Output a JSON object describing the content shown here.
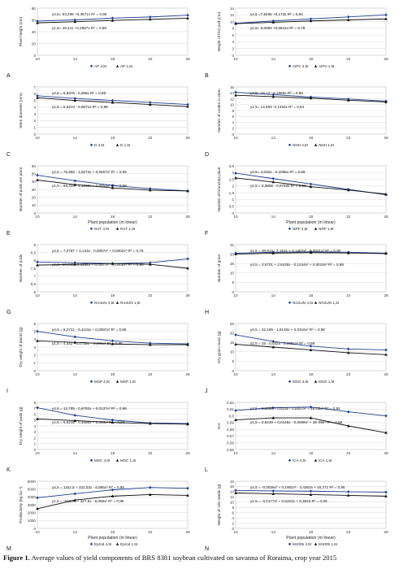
{
  "caption": {
    "label": "Figure 1.",
    "text": " Average values of yield components of BRS 8381 soybean cultivated on savanna of Roraima, crop year 2015"
  },
  "colors": {
    "series_high": "#1f3f8f",
    "series_low": "#0e0e0e",
    "grid": "#d9d9d9"
  },
  "chart_data": [
    {
      "panel": "A",
      "type": "line",
      "x": [
        10,
        14,
        18,
        22,
        26
      ],
      "xlim": [
        10,
        26
      ],
      "ylim": [
        0,
        80
      ],
      "yticks": [
        0,
        20,
        40,
        60,
        80
      ],
      "ylabel": "Plant height (cm)",
      "xlabel": "",
      "series": [
        {
          "name": "AP 4,5t",
          "values": [
            58,
            60,
            63,
            65,
            68
          ]
        },
        {
          "name": "AP 1,5t",
          "values": [
            55,
            57,
            59,
            61,
            63
          ]
        }
      ],
      "equations": [
        "y4,5= 53,296 +0,4671x R² = 0,86",
        "y1,5= 49,411 +0,4887x  R² = 0,89"
      ]
    },
    {
      "panel": "B",
      "type": "line",
      "x": [
        10,
        14,
        18,
        22,
        26
      ],
      "xlim": [
        10,
        26
      ],
      "ylim": [
        0,
        14
      ],
      "yticks": [
        0,
        2,
        4,
        6,
        8,
        10,
        12,
        14
      ],
      "ylabel": "Height of first pod (cm)",
      "xlabel": "",
      "series": [
        {
          "name": "AIPV 4,5t",
          "values": [
            9.5,
            10.2,
            10.8,
            11.4,
            12.0
          ]
        },
        {
          "name": "AIPV 1,5t",
          "values": [
            9.4,
            9.8,
            10.2,
            10.5,
            10.8
          ]
        }
      ],
      "equations": [
        "y4,5 =7,5465 +0,173x R² = 0,94",
        "y1,5= 9,0094 +0,0641x R² = 0,76"
      ]
    },
    {
      "panel": "C",
      "type": "line",
      "x": [
        10,
        14,
        18,
        22,
        26
      ],
      "xlim": [
        10,
        26
      ],
      "ylim": [
        0,
        7
      ],
      "yticks": [
        0,
        1,
        2,
        3,
        4,
        5,
        6,
        7
      ],
      "ylabel": "Stem diameter (mm)",
      "xlabel": "",
      "series": [
        {
          "name": "D 4,5t",
          "values": [
            5.7,
            5.3,
            5.0,
            4.7,
            4.4
          ]
        },
        {
          "name": "D 1,5t",
          "values": [
            5.4,
            5.0,
            4.7,
            4.4,
            4.1
          ]
        }
      ],
      "equations": [
        "y4,5 = 6,5375 - 0,086x  R² = 0,96",
        "y1,5 = 6,3213 - 0,0871x  R² = 0,98"
      ]
    },
    {
      "panel": "D",
      "type": "line",
      "x": [
        10,
        14,
        18,
        22,
        26
      ],
      "xlim": [
        10,
        26
      ],
      "ylim": [
        0,
        16
      ],
      "yticks": [
        0,
        2,
        4,
        6,
        8,
        10,
        12,
        14,
        16
      ],
      "ylabel": "Number of nodes in stem",
      "xlabel": "",
      "series": [
        {
          "name": "NNH 4,5t",
          "values": [
            14.2,
            13.4,
            12.6,
            11.9,
            11.2
          ]
        },
        {
          "name": "NNH 1,5t",
          "values": [
            13.2,
            12.7,
            12.2,
            11.5,
            10.9
          ]
        }
      ],
      "equations": [
        "y4,5= 16,12 - 0,1886x  R² = 0,96",
        "y1,5= 14,693 -0,1453x  R² = 0,94"
      ]
    },
    {
      "panel": "E",
      "type": "line",
      "x": [
        10,
        14,
        18,
        22,
        26
      ],
      "xlim": [
        10,
        26
      ],
      "ylim": [
        0,
        60
      ],
      "yticks": [
        0,
        10,
        20,
        30,
        40,
        50,
        60
      ],
      "ylabel": "Number of pods per plant",
      "xlabel": "Plant population (m linear)",
      "series": [
        {
          "name": "NVT 4,5t",
          "values": [
            48,
            41,
            35,
            31,
            28
          ]
        },
        {
          "name": "NVT 1,5t",
          "values": [
            42,
            36,
            32,
            29,
            28
          ]
        }
      ],
      "equations": [
        "y4,5 = 76,956 - 3,5873x + 0,0657x²  R² = 0,99",
        "y1,5 = 65,434 - 3,1333x + 0,0654x²  R² = 0,99"
      ]
    },
    {
      "panel": "F",
      "type": "line",
      "x": [
        10,
        14,
        18,
        22,
        26
      ],
      "xlim": [
        10,
        26
      ],
      "ylim": [
        0,
        3.5
      ],
      "yticks": [
        0,
        0.5,
        1,
        1.5,
        2,
        2.5,
        3,
        3.5
      ],
      "ylabel": "Number of branches plant",
      "xlabel": "Plant population (m linear)",
      "series": [
        {
          "name": "NRP 4,5t",
          "values": [
            2.95,
            2.55,
            2.15,
            1.75,
            1.35
          ]
        },
        {
          "name": "NRP 1,5t",
          "values": [
            2.6,
            2.3,
            1.95,
            1.7,
            1.4
          ]
        }
      ],
      "equations": [
        "y4,5= 4,0321 - 0,1095x  R² = 0,99",
        "y1,5 = 3,3856 - 0,0753x  R² = 0,98"
      ]
    },
    {
      "panel": "G",
      "type": "line",
      "x": [
        10,
        14,
        18,
        22,
        26
      ],
      "xlim": [
        10,
        26
      ],
      "ylim": [
        6.0,
        9.0
      ],
      "yticks": [
        6.0,
        6.5,
        7.0,
        7.5,
        8.0,
        8.5,
        9.0
      ],
      "ylabel": "Number of pods",
      "xlabel": "",
      "series": [
        {
          "name": "NV4UN 4,5t",
          "values": [
            7.9,
            7.85,
            7.8,
            7.85,
            8.1
          ]
        },
        {
          "name": "NV4UN 1,5t",
          "values": [
            7.7,
            7.75,
            7.8,
            7.75,
            7.5
          ]
        }
      ],
      "equations": [
        "y4,5 = 7,2787 + 0,133x - 0,0097x² + 0,0002x³ R² = 0,79",
        "y1,5= 10,046 - 0,4252x + 0,0247x² - 0,0005x³ R² = 0,98"
      ]
    },
    {
      "panel": "H",
      "type": "line",
      "x": [
        10,
        14,
        18,
        22,
        26
      ],
      "xlim": [
        10,
        26
      ],
      "ylim": [
        0,
        25
      ],
      "yticks": [
        0,
        5,
        10,
        15,
        20,
        25
      ],
      "ylabel": "Number of grain",
      "xlabel": "",
      "series": [
        {
          "name": "NG4UN 4,5t",
          "values": [
            20.5,
            21.0,
            21.2,
            21.0,
            20.5
          ]
        },
        {
          "name": "NG4UN 1,5t",
          "values": [
            20.0,
            20.5,
            20.8,
            20.6,
            20.3
          ]
        }
      ],
      "equations": [
        "y1,5 = 30,812 - 2,152x + 0,1467x² - 0,0031x³ R² = 0,90",
        "y4,5 = 3,6701 + 2,6435x - 0,1244x² + 0,0018x³ R² = 0,88"
      ]
    },
    {
      "panel": "I",
      "type": "line",
      "x": [
        10,
        14,
        18,
        22,
        26
      ],
      "xlim": [
        10,
        26
      ],
      "ylim": [
        0,
        6
      ],
      "yticks": [
        0,
        1,
        2,
        3,
        4,
        5,
        6
      ],
      "ylabel": "Dry weight of plants (g)",
      "xlabel": "",
      "series": [
        {
          "name": "MSP 4,5t",
          "values": [
            5.0,
            4.3,
            3.8,
            3.5,
            3.4
          ]
        },
        {
          "name": "MSP 1,5t",
          "values": [
            3.8,
            3.6,
            3.4,
            3.3,
            3.3
          ]
        }
      ],
      "equations": [
        "y4,5 = 8,2721 - 0,4115x + 0,0087x²  R² = 0,96",
        "y1,5 = 4,342 - 0,0738x + 0,001x²  R² = 0,96"
      ]
    },
    {
      "panel": "J",
      "type": "line",
      "x": [
        10,
        14,
        18,
        22,
        26
      ],
      "xlim": [
        10,
        26
      ],
      "ylim": [
        0,
        25
      ],
      "yticks": [
        0,
        5,
        10,
        15,
        20,
        25
      ],
      "ylabel": "Dry grain mass (g)",
      "xlabel": "",
      "series": [
        {
          "name": "MSG 4,5t",
          "values": [
            19.0,
            15.5,
            13.0,
            11.5,
            11.0
          ]
        },
        {
          "name": "MSG 1,5t",
          "values": [
            14.0,
            12.5,
            11.0,
            9.5,
            8.5
          ]
        }
      ],
      "equations": [
        "y4,5 = 32,189 - 1,6148x + 0,0316x²  R² = 0,98",
        "y1,5 = 15 - 0,042x - 0,0081x²  R² = 0,98"
      ]
    },
    {
      "panel": "K",
      "type": "line",
      "x": [
        10,
        14,
        18,
        22,
        26
      ],
      "xlim": [
        10,
        26
      ],
      "ylim": [
        0,
        8
      ],
      "yticks": [
        0,
        1,
        2,
        3,
        4,
        5,
        6,
        7,
        8
      ],
      "ylabel": "Dry weight of pods (g)",
      "xlabel": "",
      "series": [
        {
          "name": "MSC 4,5t",
          "values": [
            7.1,
            5.8,
            5.0,
            4.5,
            4.4
          ]
        },
        {
          "name": "MSC 1,5t",
          "values": [
            5.2,
            4.9,
            4.6,
            4.4,
            4.3
          ]
        }
      ],
      "equations": [
        "y4,5 = 12,785 - 0,6793x + 0,0137x²  R² = 0,96",
        "y1,5 = 6,5315 - 0,1688x + 0,003x²  R² = 0,93"
      ]
    },
    {
      "panel": "L",
      "type": "line",
      "x": [
        10,
        14,
        18,
        22,
        26
      ],
      "xlim": [
        10,
        26
      ],
      "ylim": [
        0.55,
        0.62
      ],
      "yticks": [
        0.55,
        0.56,
        0.57,
        0.58,
        0.59,
        0.6,
        0.61,
        0.62
      ],
      "ylabel": "ICA",
      "xlabel": "",
      "series": [
        {
          "name": "ICA 4,5t",
          "values": [
            0.608,
            0.612,
            0.613,
            0.606,
            0.6
          ]
        },
        {
          "name": "ICA 1,5t",
          "values": [
            0.594,
            0.597,
            0.597,
            0.585,
            0.575
          ]
        }
      ],
      "equations": [
        "y4,5 = 0,5398 + 0,013x - 0,0007x² + 1E-05x³ R² = 0,92",
        "y1,5 = 0,5249 + 0,0145x - 0,0008x² + 1E-05x³ R² = 0,98"
      ]
    },
    {
      "panel": "M",
      "type": "line",
      "x": [
        10,
        14,
        18,
        22,
        26
      ],
      "xlim": [
        10,
        26
      ],
      "ylim": [
        0,
        6000
      ],
      "yticks": [
        0,
        1000,
        2000,
        3000,
        4000,
        5000,
        6000
      ],
      "ylabel": "Productivity (kg ha⁻¹)",
      "xlabel": "Plant population (m linear)",
      "series": [
        {
          "name": "Eprod 4,5t",
          "values": [
            3900,
            4400,
            4900,
            5200,
            5100
          ]
        },
        {
          "name": "Eprod 1,5t",
          "values": [
            2500,
            3600,
            4100,
            4300,
            4200
          ]
        }
      ],
      "equations": [
        "y4,5 = 1162,8 + 332,03x - 6,885x²  R² = 0,95",
        "y1,5 = -613,06 + 427,5x - 9,058x²  R² = 0,99"
      ]
    },
    {
      "panel": "N",
      "type": "line",
      "x": [
        10,
        14,
        18,
        22,
        26
      ],
      "xlim": [
        10,
        26
      ],
      "ylim": [
        0,
        18
      ],
      "yticks": [
        0,
        2,
        4,
        6,
        8,
        10,
        12,
        14,
        16,
        18
      ],
      "ylabel": "Weight of 100 seeds (g)",
      "xlabel": "Plant population (m linear)",
      "series": [
        {
          "name": "M1005 4,5t",
          "values": [
            14.5,
            14.3,
            14.2,
            14.0,
            13.8
          ]
        },
        {
          "name": "M1005 1,5t",
          "values": [
            13.5,
            13.2,
            12.9,
            12.6,
            12.3
          ]
        }
      ],
      "equations": [
        "y4,5 = -0,0036x³ + 0,1952x² - 3,4363x + 34,271  R² = 0,95",
        "y1,5 = -0,0177x² + 0,5323x + 9,3823  R² = 0,99"
      ]
    }
  ]
}
